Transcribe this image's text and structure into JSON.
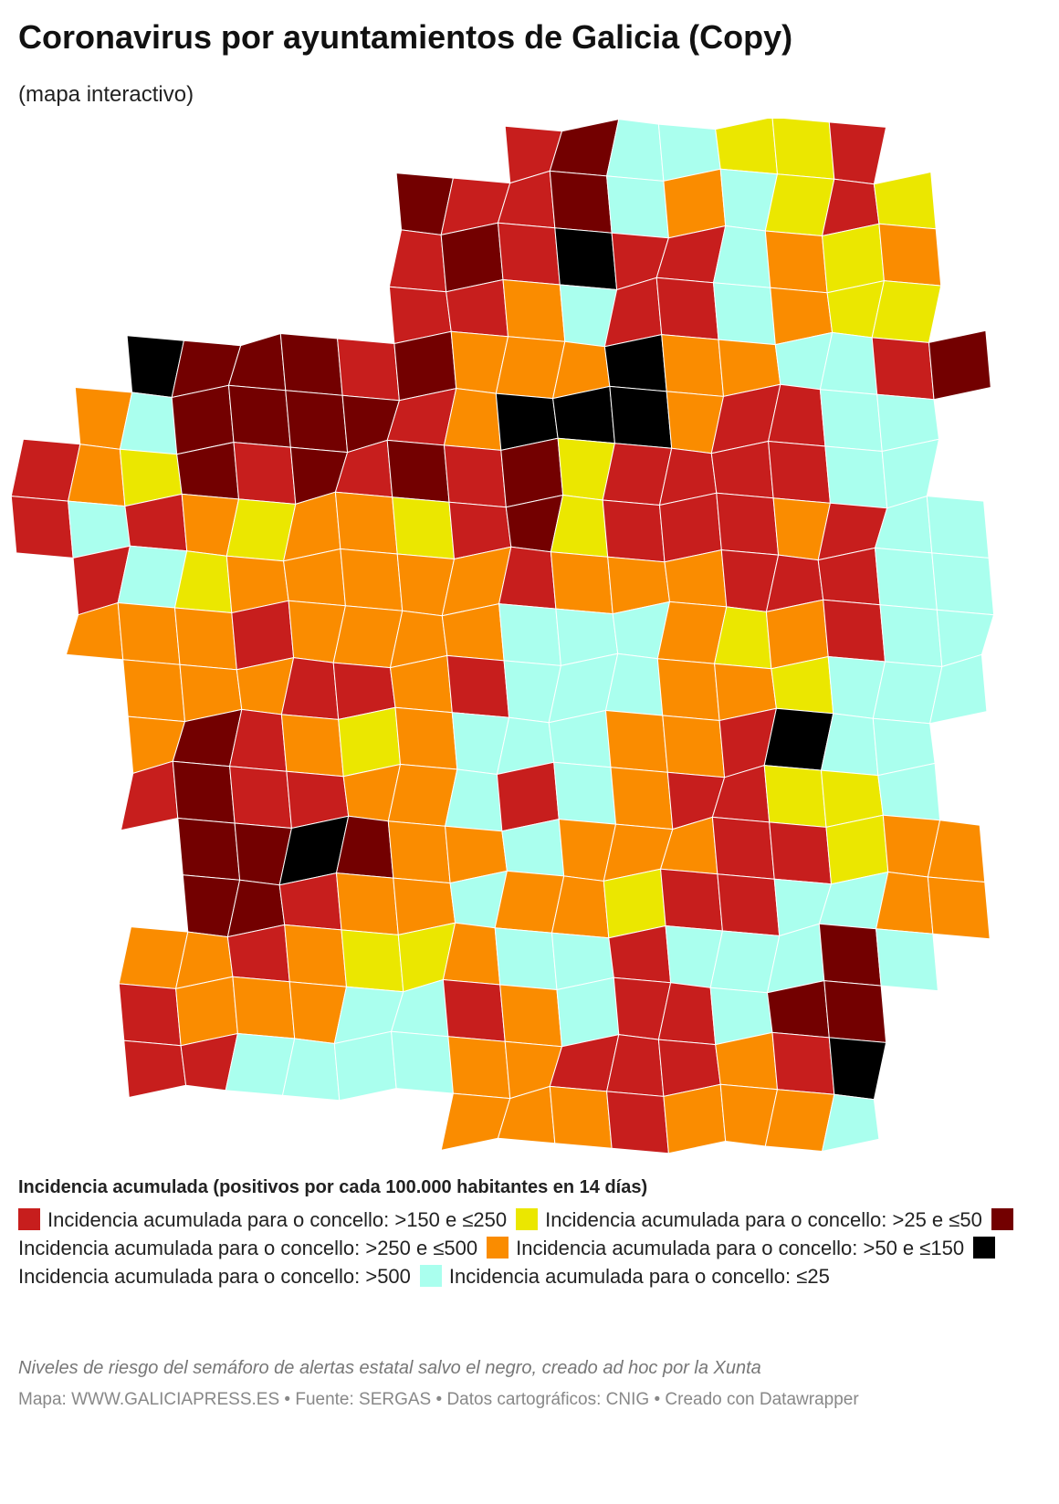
{
  "header": {
    "title": "Coronavirus por ayuntamientos de Galicia (Copy)",
    "subtitle": "(mapa interactivo)"
  },
  "legend": {
    "title": "Incidencia acumulada (positivos por cada 100.000 habitantes en 14 días)",
    "items": [
      {
        "label": "Incidencia acumulada para o concello: >150 e ≤250",
        "color": "#c71e1d"
      },
      {
        "label": "Incidencia acumulada para o concello: >25 e ≤50",
        "color": "#ebe700"
      },
      {
        "label": "Incidencia acumulada para o concello: >250 e ≤500",
        "color": "#730000"
      },
      {
        "label": "Incidencia acumulada para o concello: >50 e ≤150",
        "color": "#fa8c00"
      },
      {
        "label": "Incidencia acumulada para o concello: >500",
        "color": "#000000"
      },
      {
        "label": "Incidencia acumulada para o concello: ≤25",
        "color": "#aaffee"
      }
    ]
  },
  "notes": "Niveles de riesgo del semáforo de alertas estatal salvo el negro, creado ad hoc por la Xunta",
  "source": "Mapa: WWW.GALICIAPRESS.ES • Fuente: SERGAS • Datos cartográficos: CNIG • Creado con Datawrapper"
}
